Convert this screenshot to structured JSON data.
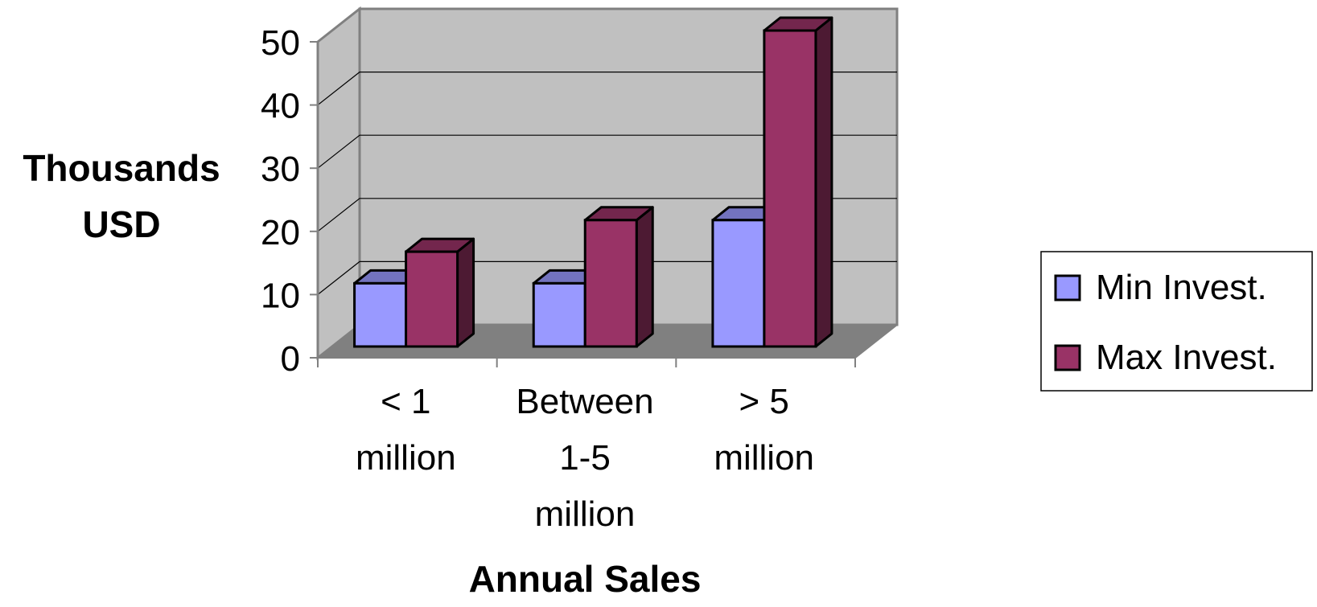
{
  "chart_data": {
    "type": "bar",
    "style": "3d-clustered-column",
    "categories": [
      [
        "< 1",
        "million"
      ],
      [
        "Between",
        "1-5",
        "million"
      ],
      [
        "> 5",
        "million"
      ]
    ],
    "series": [
      {
        "name": "Min Invest.",
        "values": [
          10,
          10,
          20
        ],
        "color": "#9999ff"
      },
      {
        "name": "Max Invest.",
        "values": [
          15,
          20,
          50
        ],
        "color": "#993366"
      }
    ],
    "title": "",
    "xlabel": "Annual Sales",
    "ylabel": [
      "Thousands",
      "USD"
    ],
    "ylim": [
      0,
      50
    ],
    "yticks": [
      "0",
      "10",
      "20",
      "30",
      "40",
      "50"
    ],
    "grid": true,
    "legend_position": "right",
    "wall_color": "#c0c0c0",
    "floor_color": "#808080"
  }
}
